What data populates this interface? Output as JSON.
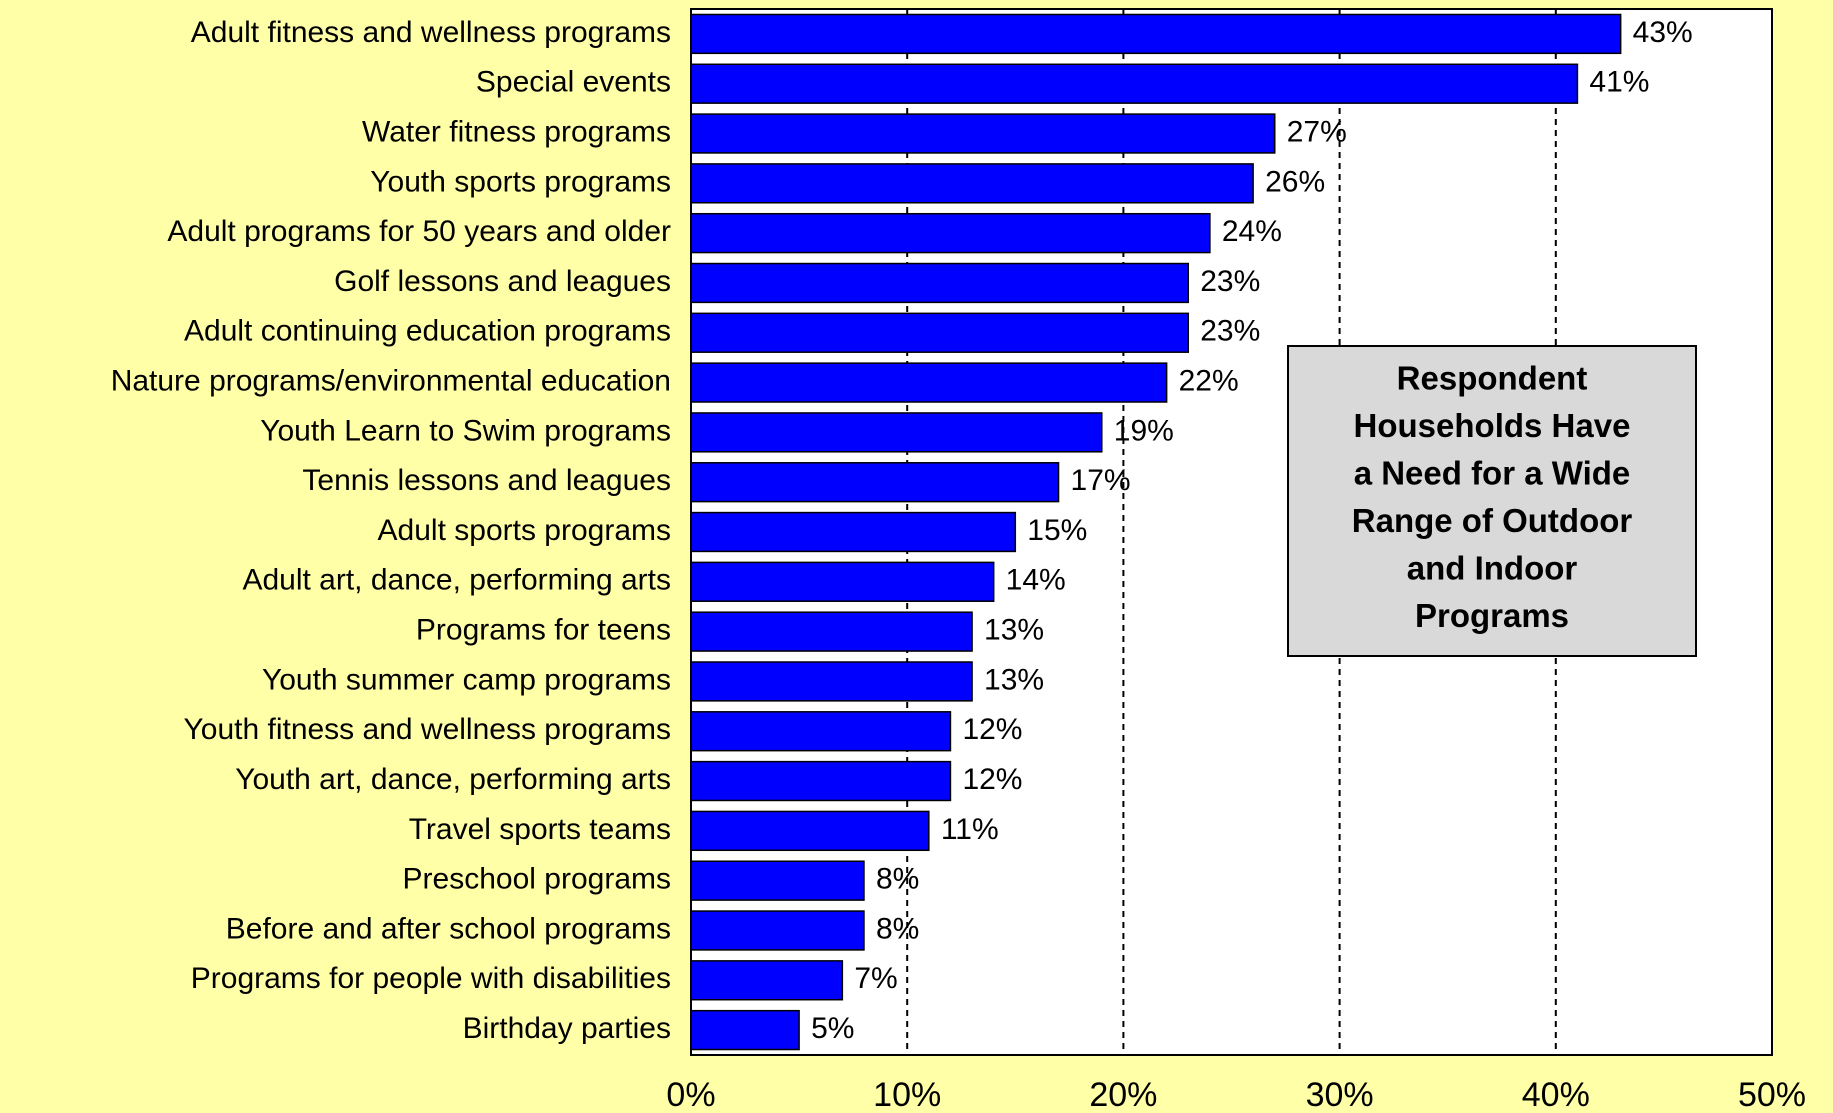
{
  "chart_data": {
    "type": "bar",
    "orientation": "horizontal",
    "categories": [
      "Adult fitness and wellness programs",
      "Special events",
      "Water fitness programs",
      "Youth sports programs",
      "Adult programs for 50 years and older",
      "Golf lessons and leagues",
      "Adult continuing education programs",
      "Nature programs/environmental education",
      "Youth Learn to Swim programs",
      "Tennis lessons and leagues",
      "Adult sports programs",
      "Adult art, dance, performing arts",
      "Programs for teens",
      "Youth summer camp programs",
      "Youth fitness and wellness programs",
      "Youth art, dance, performing arts",
      "Travel sports teams",
      "Preschool programs",
      "Before and after school programs",
      "Programs for people with disabilities",
      "Birthday parties"
    ],
    "values": [
      43,
      41,
      27,
      26,
      24,
      23,
      23,
      22,
      19,
      17,
      15,
      14,
      13,
      13,
      12,
      12,
      11,
      8,
      8,
      7,
      5
    ],
    "value_labels": [
      "43%",
      "41%",
      "27%",
      "26%",
      "24%",
      "23%",
      "23%",
      "22%",
      "19%",
      "17%",
      "15%",
      "14%",
      "13%",
      "13%",
      "12%",
      "12%",
      "11%",
      "8%",
      "8%",
      "7%",
      "5%"
    ],
    "color": "#0000ff",
    "xlim": [
      0,
      50
    ],
    "xticks": [
      {
        "value": 0,
        "label": "0%"
      },
      {
        "value": 10,
        "label": "10%"
      },
      {
        "value": 20,
        "label": "20%"
      },
      {
        "value": 30,
        "label": "30%"
      },
      {
        "value": 40,
        "label": "40%"
      },
      {
        "value": 50,
        "label": "50%"
      }
    ],
    "grid": true,
    "annotation": [
      "Respondent",
      "Households Have",
      "a Need for a Wide",
      "Range of Outdoor",
      "and Indoor",
      "Programs"
    ]
  }
}
